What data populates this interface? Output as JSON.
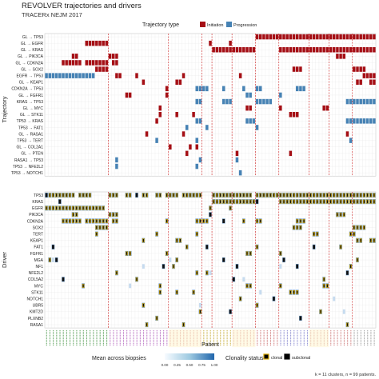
{
  "header": {
    "title": "REVOLVER trajectories and drivers",
    "subtitle": "TRACERx NEJM 2017"
  },
  "legend_type": {
    "title": "Trajectory type",
    "items": [
      {
        "label": "Initiation",
        "color": "#a50f15"
      },
      {
        "label": "Progression",
        "color": "#4682b4"
      }
    ]
  },
  "legend_bottom": {
    "mean_title": "Mean across biopsies",
    "mean_ticks": [
      "0.00",
      "0.25",
      "0.50",
      "0.75",
      "1.00"
    ],
    "clonality_title": "Clonality status",
    "clonality_items": [
      {
        "label": "clonal",
        "fill": "#000000",
        "border": "#d6a700"
      },
      {
        "label": "subclonal",
        "fill": "#000000",
        "border": "#000000"
      }
    ]
  },
  "footer": {
    "caption": "k = 11 clusters, n = 99 patients."
  },
  "chart_data": {
    "type": "heatmap",
    "n_patients": 99,
    "cluster_boundaries": [
      19,
      37,
      47,
      50,
      56,
      63,
      70,
      79,
      85,
      92
    ],
    "cluster_tick_colors": [
      "#5aa05a",
      "#b86fc1",
      "#d07a7a",
      "#c9b040",
      "#c9b040",
      "#d07a7a",
      "#d07a7a",
      "#8a8ad0",
      "#c88080",
      "#d08080",
      "#a0a0a0"
    ],
    "colors": {
      "initiation": "#a50f15",
      "progression": "#4682b4",
      "clonal_border": "#d6a700",
      "grid": "#e6e6e6",
      "divider": "#d43a3a"
    },
    "top_panel": {
      "ylabel": "Trajectory",
      "rows": [
        "GL → TP53",
        "GL → EGFR",
        "GL → KRAS",
        "GL → PIK3CA",
        "GL → CDKN2A",
        "GL → SOX2",
        "EGFR → TP53",
        "GL → KEAP1",
        "CDKN2A → TP53",
        "GL → FGFR1",
        "KRAS → TP53",
        "GL → MYC",
        "GL → STK11",
        "TP53 → KRAS",
        "TP53 → FAT1",
        "GL → RASA1",
        "TP53 → TERT",
        "GL → COL2A1",
        "GL → PTEN",
        "RASA1 → TP53",
        "TP53 → NFE2L2",
        "TP53 → NOTCH1"
      ],
      "cells": [
        [
          0,
          [
            [
              63,
              99,
              "I"
            ]
          ]
        ],
        [
          1,
          [
            [
              12,
              19,
              "I"
            ],
            [
              49,
              50,
              "I"
            ],
            [
              55,
              56,
              "I"
            ]
          ]
        ],
        [
          2,
          [
            [
              50,
              63,
              "I"
            ],
            [
              70,
              82,
              "I"
            ],
            [
              82,
              99,
              "I"
            ]
          ]
        ],
        [
          3,
          [
            [
              8,
              10,
              "I"
            ],
            [
              19,
              22,
              "I"
            ],
            [
              87,
              90,
              "I"
            ]
          ]
        ],
        [
          4,
          [
            [
              5,
              11,
              "I"
            ],
            [
              12,
              19,
              "I"
            ],
            [
              20,
              22,
              "I"
            ]
          ]
        ],
        [
          5,
          [
            [
              15,
              19,
              "I"
            ],
            [
              74,
              77,
              "I"
            ],
            [
              92,
              96,
              "I"
            ]
          ]
        ],
        [
          6,
          [
            [
              0,
              8,
              "P"
            ],
            [
              8,
              15,
              "P"
            ],
            [
              21,
              23,
              "I"
            ],
            [
              27,
              28,
              "I"
            ],
            [
              41,
              42,
              "I"
            ],
            [
              58,
              59,
              "I"
            ],
            [
              95,
              99,
              "I"
            ]
          ]
        ],
        [
          7,
          [
            [
              29,
              30,
              "I"
            ],
            [
              39,
              41,
              "I"
            ],
            [
              93,
              95,
              "I"
            ],
            [
              97,
              99,
              "I"
            ]
          ]
        ],
        [
          8,
          [
            [
              36,
              37,
              "I"
            ],
            [
              45,
              49,
              "P"
            ],
            [
              53,
              54,
              "P"
            ],
            [
              59,
              60,
              "P"
            ],
            [
              63,
              65,
              "P"
            ],
            [
              75,
              78,
              "P"
            ]
          ]
        ],
        [
          9,
          [
            [
              24,
              26,
              "I"
            ],
            [
              36,
              37,
              "I"
            ],
            [
              60,
              62,
              "P"
            ],
            [
              70,
              71,
              "P"
            ]
          ]
        ],
        [
          10,
          [
            [
              45,
              47,
              "P"
            ],
            [
              53,
              56,
              "P"
            ],
            [
              63,
              68,
              "P"
            ],
            [
              90,
              99,
              "P"
            ]
          ]
        ],
        [
          11,
          [
            [
              34,
              35,
              "I"
            ],
            [
              60,
              62,
              "I"
            ],
            [
              70,
              71,
              "I"
            ],
            [
              83,
              85,
              "I"
            ]
          ]
        ],
        [
          12,
          [
            [
              34,
              35,
              "I"
            ],
            [
              39,
              40,
              "I"
            ],
            [
              44,
              45,
              "I"
            ],
            [
              73,
              75,
              "I"
            ],
            [
              75,
              76,
              "I"
            ]
          ]
        ],
        [
          13,
          [
            [
              33,
              34,
              "I"
            ],
            [
              45,
              47,
              "P"
            ],
            [
              60,
              63,
              "P"
            ],
            [
              90,
              99,
              "P"
            ]
          ]
        ],
        [
          14,
          [
            [
              42,
              43,
              "P"
            ],
            [
              48,
              49,
              "P"
            ],
            [
              63,
              64,
              "P"
            ]
          ]
        ],
        [
          15,
          [
            [
              30,
              31,
              "I"
            ],
            [
              41,
              42,
              "I"
            ],
            [
              90,
              91,
              "I"
            ]
          ]
        ],
        [
          16,
          [
            [
              33,
              34,
              "P"
            ],
            [
              45,
              46,
              "P"
            ],
            [
              91,
              92,
              "P"
            ]
          ]
        ],
        [
          17,
          [
            [
              37,
              38,
              "I"
            ],
            [
              43,
              44,
              "I"
            ],
            [
              45,
              46,
              "I"
            ]
          ]
        ],
        [
          18,
          [
            [
              42,
              43,
              "I"
            ],
            [
              57,
              58,
              "I"
            ],
            [
              73,
              74,
              "I"
            ]
          ]
        ],
        [
          19,
          [
            [
              21,
              22,
              "P"
            ],
            [
              46,
              47,
              "P"
            ],
            [
              57,
              58,
              "P"
            ]
          ]
        ],
        [
          20,
          [
            [
              21,
              22,
              "P"
            ],
            [
              45,
              46,
              "P"
            ]
          ]
        ],
        [
          21,
          [
            [
              58,
              59,
              "P"
            ]
          ]
        ]
      ]
    },
    "bottom_panel": {
      "ylabel": "Driver",
      "xlabel": "Patient",
      "rows": [
        "TP53",
        "KRAS",
        "EGFR",
        "PIK3CA",
        "CDKN2A",
        "SOX2",
        "TERT",
        "KEAP1",
        "FAT1",
        "FGFR1",
        "MGA",
        "NF1",
        "NFE2L2",
        "COL5A2",
        "MYC",
        "STK11",
        "NOTCH1",
        "UBR5",
        "KMT2D",
        "PLXNB2",
        "RASA1"
      ],
      "cells": [
        [
          0,
          [
            [
              0,
              1,
              "s"
            ],
            [
              1,
              9,
              "c"
            ],
            [
              10,
              14,
              "c"
            ],
            [
              19,
              22,
              "c"
            ],
            [
              24,
              26,
              "c"
            ],
            [
              27,
              28,
              "s"
            ],
            [
              29,
              31,
              "c"
            ],
            [
              33,
              35,
              "c"
            ],
            [
              36,
              40,
              "c"
            ],
            [
              41,
              47,
              "c"
            ],
            [
              50,
              56,
              "c"
            ],
            [
              56,
              62,
              "c"
            ],
            [
              63,
              99,
              "c"
            ]
          ]
        ],
        [
          1,
          [
            [
              4,
              5,
              "s"
            ],
            [
              50,
              63,
              "c"
            ],
            [
              63,
              64,
              "s"
            ],
            [
              70,
              82,
              "c"
            ],
            [
              82,
              99,
              "c"
            ]
          ]
        ],
        [
          2,
          [
            [
              0,
              18,
              "c"
            ],
            [
              49,
              50,
              "c"
            ],
            [
              55,
              56,
              "c"
            ]
          ]
        ],
        [
          3,
          [
            [
              8,
              10,
              "c"
            ],
            [
              19,
              22,
              "c"
            ],
            [
              49,
              50,
              "s"
            ],
            [
              87,
              90,
              "c"
            ]
          ]
        ],
        [
          4,
          [
            [
              5,
              11,
              "c"
            ],
            [
              12,
              19,
              "c"
            ],
            [
              20,
              22,
              "c"
            ],
            [
              36,
              37,
              "c"
            ],
            [
              45,
              49,
              "c"
            ],
            [
              53,
              54,
              "s"
            ],
            [
              59,
              60,
              "c"
            ],
            [
              63,
              65,
              "c"
            ],
            [
              75,
              78,
              "c"
            ]
          ]
        ],
        [
          5,
          [
            [
              15,
              19,
              "c"
            ],
            [
              74,
              77,
              "c"
            ],
            [
              92,
              96,
              "c"
            ]
          ]
        ],
        [
          6,
          [
            [
              15,
              16,
              "c"
            ],
            [
              33,
              34,
              "c"
            ],
            [
              45,
              46,
              "c"
            ],
            [
              80,
              82,
              "c"
            ],
            [
              91,
              93,
              "c"
            ]
          ]
        ],
        [
          7,
          [
            [
              29,
              30,
              "c"
            ],
            [
              39,
              41,
              "c"
            ],
            [
              93,
              95,
              "c"
            ],
            [
              97,
              99,
              "c"
            ]
          ]
        ],
        [
          8,
          [
            [
              2,
              3,
              "s"
            ],
            [
              42,
              43,
              "c"
            ],
            [
              48,
              49,
              "s"
            ],
            [
              63,
              64,
              "c"
            ],
            [
              80,
              81,
              "s"
            ],
            [
              88,
              89,
              "c"
            ]
          ]
        ],
        [
          9,
          [
            [
              24,
              26,
              "c"
            ],
            [
              36,
              37,
              "c"
            ],
            [
              60,
              62,
              "c"
            ],
            [
              70,
              71,
              "c"
            ]
          ]
        ],
        [
          10,
          [
            [
              1,
              2,
              "c"
            ],
            [
              3,
              4,
              "s"
            ],
            [
              39,
              40,
              "c"
            ],
            [
              53,
              54,
              "s"
            ],
            [
              71,
              72,
              "s"
            ],
            [
              93,
              94,
              "c"
            ]
          ]
        ],
        [
          11,
          [
            [
              35,
              36,
              "s"
            ],
            [
              38,
              39,
              "c"
            ],
            [
              57,
              58,
              "s"
            ],
            [
              75,
              76,
              "s"
            ],
            [
              91,
              92,
              "c"
            ]
          ]
        ],
        [
          12,
          [
            [
              21,
              22,
              "c"
            ],
            [
              45,
              46,
              "c"
            ],
            [
              48,
              49,
              "c"
            ],
            [
              90,
              91,
              "s"
            ]
          ]
        ],
        [
          13,
          [
            [
              5,
              6,
              "s"
            ],
            [
              27,
              28,
              "c"
            ],
            [
              56,
              57,
              "s"
            ],
            [
              83,
              84,
              "c"
            ]
          ]
        ],
        [
          14,
          [
            [
              11,
              12,
              "c"
            ],
            [
              34,
              35,
              "c"
            ],
            [
              60,
              62,
              "c"
            ],
            [
              70,
              71,
              "c"
            ],
            [
              83,
              85,
              "c"
            ]
          ]
        ],
        [
          15,
          [
            [
              34,
              35,
              "c"
            ],
            [
              39,
              40,
              "c"
            ],
            [
              44,
              45,
              "c"
            ],
            [
              73,
              76,
              "c"
            ]
          ]
        ],
        [
          16,
          [
            [
              58,
              59,
              "c"
            ],
            [
              68,
              69,
              "s"
            ]
          ]
        ],
        [
          17,
          [
            [
              29,
              30,
              "c"
            ],
            [
              63,
              64,
              "c"
            ]
          ]
        ],
        [
          18,
          [
            [
              46,
              47,
              "c"
            ],
            [
              55,
              56,
              "s"
            ],
            [
              82,
              83,
              "c"
            ]
          ]
        ],
        [
          19,
          [
            [
              33,
              34,
              "c"
            ],
            [
              76,
              77,
              "s"
            ]
          ]
        ],
        [
          20,
          [
            [
              30,
              31,
              "c"
            ],
            [
              41,
              42,
              "c"
            ],
            [
              90,
              91,
              "c"
            ]
          ]
        ]
      ],
      "faded_cells": [
        [
          10,
          2
        ],
        [
          10,
          37
        ],
        [
          11,
          29
        ],
        [
          11,
          70
        ],
        [
          12,
          49
        ],
        [
          13,
          59
        ],
        [
          14,
          25
        ],
        [
          15,
          64
        ],
        [
          16,
          86
        ],
        [
          17,
          46
        ],
        [
          18,
          89
        ]
      ]
    }
  }
}
